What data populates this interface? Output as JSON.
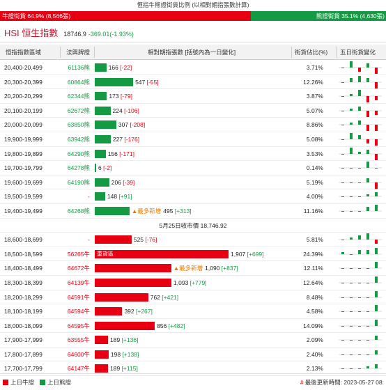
{
  "header": {
    "title": "恒指牛熊證街貨比例 (以相對期指張數計算)",
    "bull_label": "牛證街貨 64.9% (8,566張)",
    "bear_label": "熊證街貨 35.1% (4,630張)",
    "bull_fraction": 0.649
  },
  "index": {
    "name": "HSI 恒生指數",
    "value": "18746.9",
    "change": "-369.01(-1.93%)"
  },
  "table_header": {
    "range": "恒指指數區域",
    "certificate": "法興牌證",
    "relative": "相對期指張數 [括號內為一日變化]",
    "share": "街貨佔比(%)",
    "five_day": "五日街貨變化"
  },
  "close_line": "5月25日收市價 18,746.92",
  "colors": {
    "bull": "#e60012",
    "bear": "#139a43"
  },
  "bear_rows": [
    {
      "range": "20,400-20,499",
      "cert": "61136熊",
      "value": 166,
      "count": "166",
      "delta": "[-22]",
      "share": "3.71%",
      "trend": [
        -1,
        3,
        -2,
        2,
        -3
      ]
    },
    {
      "range": "20,300-20,399",
      "cert": "60864熊",
      "value": 547,
      "count": "547",
      "delta": "[-55]",
      "share": "12.26%",
      "trend": [
        -1,
        2,
        3,
        2,
        -3
      ]
    },
    {
      "range": "20,200-20,299",
      "cert": "62344熊",
      "value": 173,
      "count": "173",
      "delta": "[-79]",
      "share": "3.87%",
      "trend": [
        -1,
        1,
        3,
        -3,
        -2
      ]
    },
    {
      "range": "20,100-20,199",
      "cert": "62672熊",
      "value": 224,
      "count": "224",
      "delta": "[-106]",
      "share": "5.07%",
      "trend": [
        -1,
        1,
        2,
        -3,
        -2
      ]
    },
    {
      "range": "20,000-20,099",
      "cert": "63850熊",
      "value": 307,
      "count": "307",
      "delta": "[-208]",
      "share": "8.86%",
      "trend": [
        -1,
        1,
        2,
        -3,
        -3
      ]
    },
    {
      "range": "19,900-19,999",
      "cert": "63942熊",
      "value": 227,
      "count": "227",
      "delta": "[-176]",
      "share": "5.08%",
      "trend": [
        -1,
        3,
        2,
        -2,
        -3
      ]
    },
    {
      "range": "19,800-19,899",
      "cert": "64290熊",
      "value": 156,
      "count": "156",
      "delta": "[-171]",
      "share": "3.53%",
      "trend": [
        -1,
        3,
        1,
        2,
        -3
      ]
    },
    {
      "range": "19,700-19,799",
      "cert": "64278熊",
      "value": 6,
      "count": "6",
      "delta": "[-2]",
      "share": "0.14%",
      "trend": [
        -1,
        -1,
        -1,
        3,
        -1
      ]
    },
    {
      "range": "19,600-19,699",
      "cert": "64190熊",
      "value": 206,
      "count": "206",
      "delta": "[-39]",
      "share": "5.19%",
      "trend": [
        -1,
        -1,
        -1,
        2,
        -3
      ]
    },
    {
      "range": "19,500-19,599",
      "cert": "-",
      "value": 148,
      "count": "148",
      "delta": "[+91]",
      "share": "4.00%",
      "trend": [
        -1,
        -1,
        -1,
        1,
        2
      ]
    },
    {
      "range": "19,400-19,499",
      "cert": "64268熊",
      "value": 495,
      "count": "495",
      "delta": "[+313]",
      "share": "11.16%",
      "new": "▲最多新增",
      "trend": [
        -1,
        -1,
        -1,
        2,
        3
      ]
    }
  ],
  "bull_rows": [
    {
      "range": "18,600-18,699",
      "cert": "-",
      "value": 525,
      "count": "525",
      "delta": "[-76]",
      "share": "5.81%",
      "trend": [
        -1,
        1,
        2,
        3,
        -2
      ]
    },
    {
      "range": "18,500-18,599",
      "cert": "56265牛",
      "value": 1907,
      "count": "1,907",
      "delta": "[+699]",
      "share": "24.39%",
      "label": "重貨區",
      "trend": [
        1,
        -1,
        2,
        2,
        3
      ]
    },
    {
      "range": "18,400-18,499",
      "cert": "64672牛",
      "value": 1090,
      "count": "1,090",
      "delta": "[+837]",
      "share": "12.11%",
      "new": "▲最多新增",
      "trend": [
        -1,
        -1,
        -1,
        -1,
        3
      ]
    },
    {
      "range": "18,300-18,399",
      "cert": "64139牛",
      "value": 1093,
      "count": "1,093",
      "delta": "[+779]",
      "share": "12.64%",
      "trend": [
        -1,
        -1,
        -1,
        -1,
        3
      ]
    },
    {
      "range": "18,200-18,299",
      "cert": "64591牛",
      "value": 762,
      "count": "762",
      "delta": "[+421]",
      "share": "8.48%",
      "trend": [
        -1,
        -1,
        -1,
        -1,
        3
      ]
    },
    {
      "range": "18,100-18,199",
      "cert": "64594牛",
      "value": 392,
      "count": "392",
      "delta": "[+267]",
      "share": "4.58%",
      "trend": [
        -1,
        -1,
        -1,
        -1,
        3
      ]
    },
    {
      "range": "18,000-18,099",
      "cert": "64595牛",
      "value": 856,
      "count": "856",
      "delta": "[+482]",
      "share": "14.09%",
      "trend": [
        -1,
        -1,
        -1,
        -1,
        3
      ]
    },
    {
      "range": "17,900-17,999",
      "cert": "63555牛",
      "value": 189,
      "count": "189",
      "delta": "[+136]",
      "share": "2.09%",
      "trend": [
        -1,
        -1,
        -1,
        -1,
        2
      ]
    },
    {
      "range": "17,800-17,899",
      "cert": "64600牛",
      "value": 198,
      "count": "198",
      "delta": "[+138]",
      "share": "2.40%",
      "trend": [
        -1,
        -1,
        -1,
        -1,
        2
      ]
    },
    {
      "range": "17,700-17,799",
      "cert": "64147牛",
      "value": 189,
      "count": "189",
      "delta": "[+115]",
      "share": "2.13%",
      "trend": [
        -1,
        -1,
        -1,
        1,
        2
      ]
    }
  ],
  "legend": {
    "bull": "上日牛證",
    "bear": "上日熊證"
  },
  "updated": "最後更新時間: 2023-05-27 08:"
}
